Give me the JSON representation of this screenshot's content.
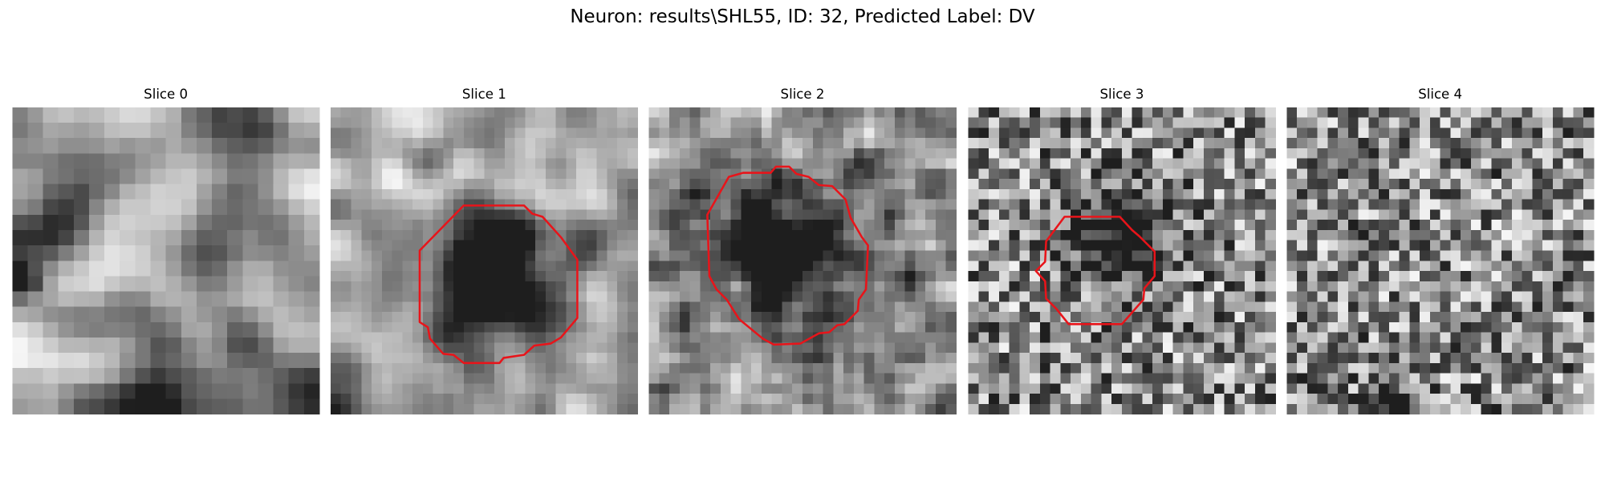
{
  "title": "Neuron: results\\SHL55, ID: 32, Predicted Label: DV",
  "panels": [
    {
      "title": "Slice 0"
    },
    {
      "title": "Slice 1"
    },
    {
      "title": "Slice 2"
    },
    {
      "title": "Slice 3"
    },
    {
      "title": "Slice 4"
    }
  ]
}
